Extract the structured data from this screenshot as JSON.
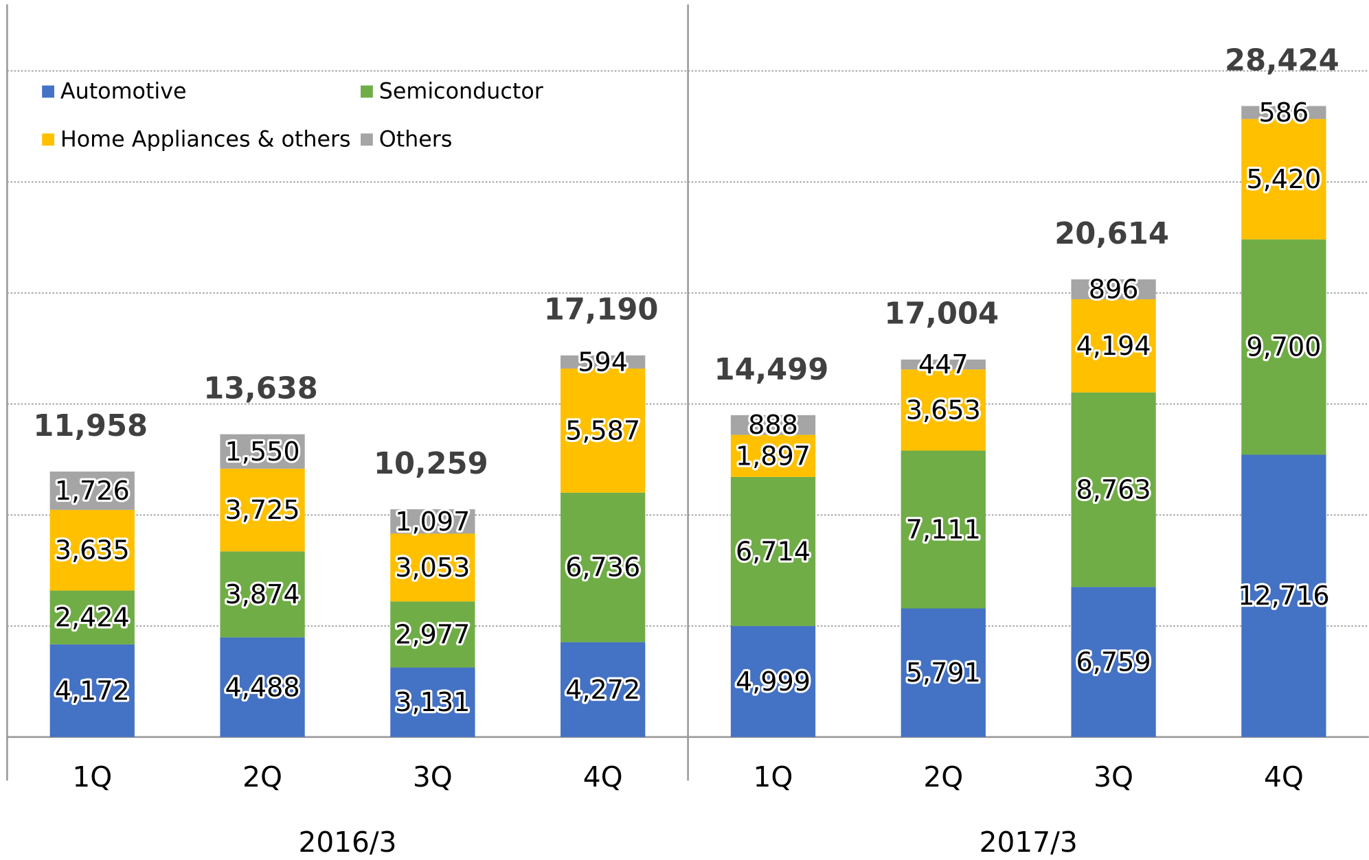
{
  "chart_data": {
    "type": "stacked_bar",
    "categories": [
      "1Q",
      "2Q",
      "3Q",
      "4Q",
      "1Q",
      "2Q",
      "3Q",
      "4Q"
    ],
    "groups": [
      "2016/3",
      "2017/3"
    ],
    "series": [
      {
        "name": "Automotive",
        "color": "#4472c4",
        "values": [
          4172,
          4488,
          3131,
          4272,
          4999,
          5791,
          6759,
          12716
        ],
        "value_labels": [
          "4,172",
          "4,488",
          "3,131",
          "4,272",
          "4,999",
          "5,791",
          "6,759",
          "12,716"
        ]
      },
      {
        "name": "Semiconductor",
        "color": "#70ad47",
        "values": [
          2424,
          3874,
          2977,
          6736,
          6714,
          7111,
          8763,
          9700
        ],
        "value_labels": [
          "2,424",
          "3,874",
          "2,977",
          "6,736",
          "6,714",
          "7,111",
          "8,763",
          "9,700"
        ]
      },
      {
        "name": "Home Appliances & others",
        "color": "#ffc000",
        "values": [
          3635,
          3725,
          3053,
          5587,
          1897,
          3653,
          4194,
          5420
        ],
        "value_labels": [
          "3,635",
          "3,725",
          "3,053",
          "5,587",
          "1,897",
          "3,653",
          "4,194",
          "5,420"
        ]
      },
      {
        "name": "Others",
        "color": "#a5a5a5",
        "values": [
          1726,
          1550,
          1097,
          594,
          888,
          447,
          896,
          586
        ],
        "value_labels": [
          "1,726",
          "1,550",
          "1,097",
          "594",
          "888",
          "447",
          "896",
          "586"
        ]
      }
    ],
    "totals": [
      11958,
      13638,
      10259,
      17190,
      14499,
      17004,
      20614,
      28424
    ],
    "total_labels": [
      "11,958",
      "13,638",
      "10,259",
      "17,190",
      "14,499",
      "17,004",
      "20,614",
      "28,424"
    ],
    "ylim": [
      0,
      33000
    ],
    "yticks": [
      0,
      5000,
      10000,
      15000,
      20000,
      25000,
      30000
    ],
    "grid": true,
    "legend": "upper left"
  }
}
